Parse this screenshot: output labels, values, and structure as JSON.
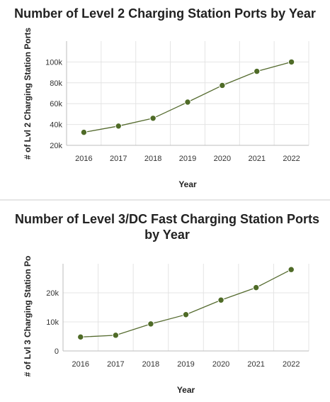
{
  "chart_data": [
    {
      "type": "line",
      "title": "Number of Level 2 Charging Station Ports by Year",
      "xlabel": "Year",
      "ylabel": "# of Lvl 2 Charging Station Ports",
      "categories": [
        "2016",
        "2017",
        "2018",
        "2019",
        "2020",
        "2021",
        "2022"
      ],
      "values": [
        32500,
        38500,
        46000,
        61500,
        77500,
        91000,
        100000
      ],
      "ylim": [
        20000,
        120000
      ],
      "yticks": [
        20000,
        40000,
        60000,
        80000,
        100000
      ],
      "ytick_labels": [
        "20k",
        "40k",
        "60k",
        "80k",
        "100k"
      ],
      "grid": true,
      "line_color": "#556b2f",
      "marker_color": "#4f6b27"
    },
    {
      "type": "line",
      "title": "Number of Level 3/DC Fast Charging Station Ports by Year",
      "xlabel": "Year",
      "ylabel": "# of Lvl 3 Charging Station Po",
      "categories": [
        "2016",
        "2017",
        "2018",
        "2019",
        "2020",
        "2021",
        "2022"
      ],
      "values": [
        4800,
        5400,
        9300,
        12500,
        17500,
        21800,
        28000
      ],
      "ylim": [
        0,
        30000
      ],
      "yticks": [
        0,
        10000,
        20000
      ],
      "ytick_labels": [
        "0",
        "10k",
        "20k"
      ],
      "grid": true,
      "line_color": "#556b2f",
      "marker_color": "#4f6b27"
    }
  ]
}
